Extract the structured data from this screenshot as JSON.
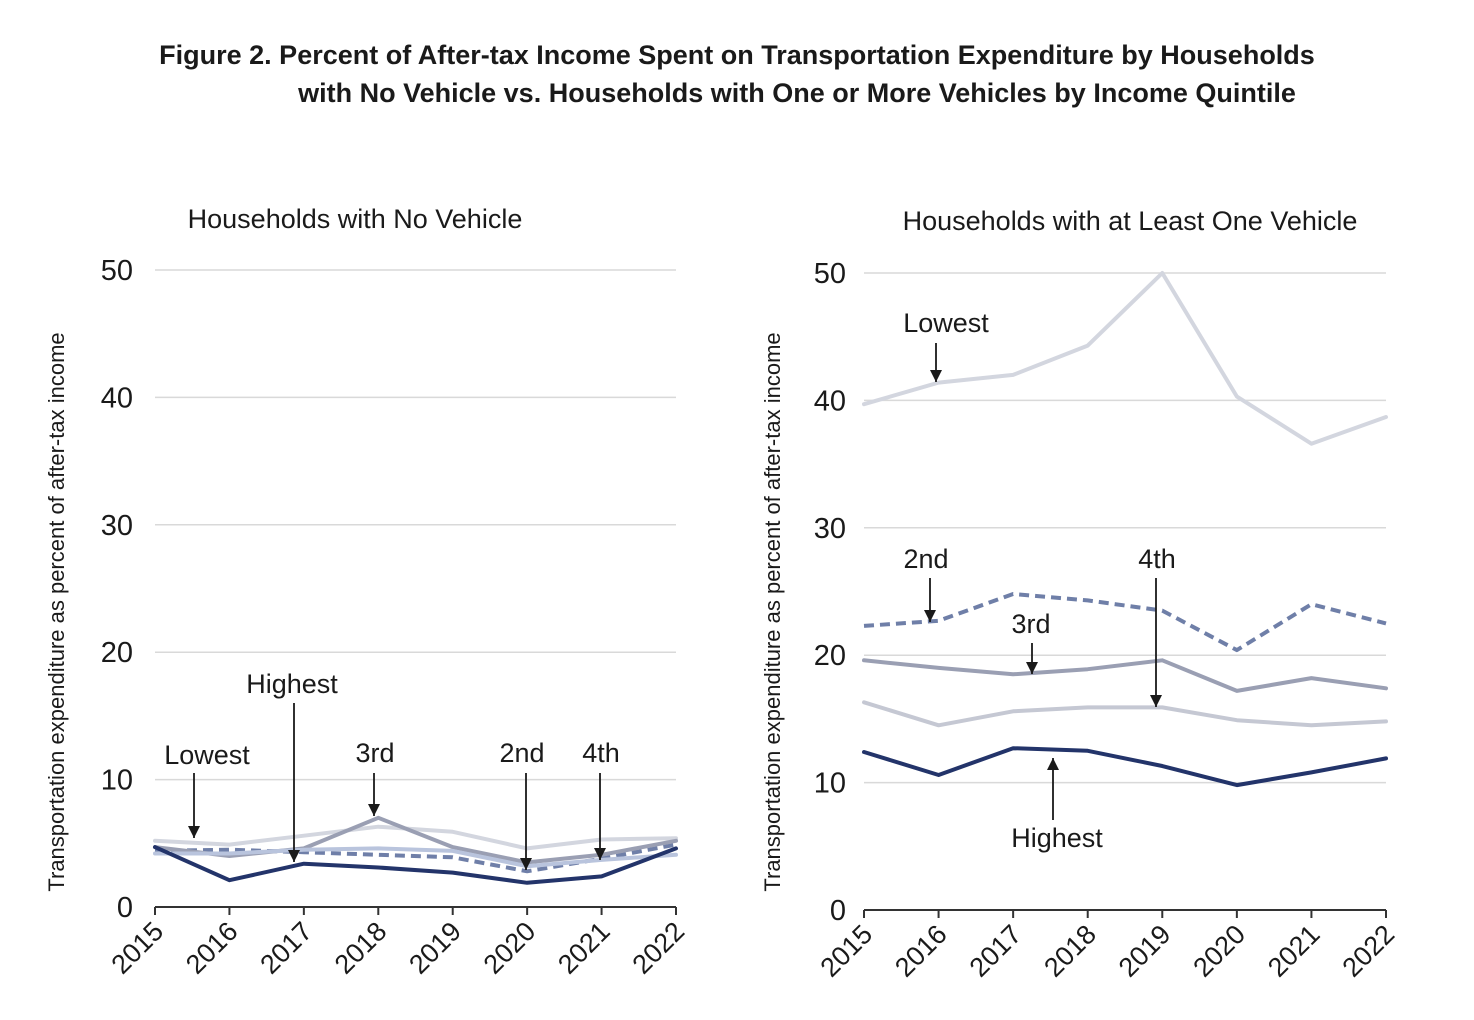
{
  "figure": {
    "title_line1": "Figure 2. Percent of After-tax Income Spent on Transportation Expenditure by Households",
    "title_line2": "with No Vehicle vs. Households with One or More Vehicles by Income Quintile"
  },
  "chart_data": [
    {
      "type": "line",
      "title": "Households with No Vehicle",
      "xlabel": "",
      "ylabel": "Transportation expenditure as  percent of after-tax income",
      "x": [
        "2015",
        "2016",
        "2017",
        "2018",
        "2019",
        "2020",
        "2021",
        "2022"
      ],
      "ylim": [
        0,
        50
      ],
      "yticks": [
        0,
        10,
        20,
        30,
        40,
        50
      ],
      "grid": true,
      "series": [
        {
          "name": "Lowest",
          "color": "#d3d6df",
          "dashed": false,
          "values": [
            5.2,
            4.9,
            5.6,
            6.3,
            5.9,
            4.6,
            5.3,
            5.4
          ]
        },
        {
          "name": "2nd",
          "color": "#6f7fa8",
          "dashed": true,
          "values": [
            4.4,
            4.5,
            4.3,
            4.1,
            3.9,
            2.8,
            3.8,
            4.9
          ]
        },
        {
          "name": "3rd",
          "color": "#9a9fb3",
          "dashed": false,
          "values": [
            4.7,
            4.0,
            4.6,
            7.0,
            4.7,
            3.5,
            4.1,
            5.2
          ]
        },
        {
          "name": "4th",
          "color": "#b9c4dd",
          "dashed": false,
          "values": [
            4.2,
            4.2,
            4.5,
            4.6,
            4.4,
            3.2,
            3.7,
            4.1
          ]
        },
        {
          "name": "Highest",
          "color": "#23346a",
          "dashed": false,
          "values": [
            4.7,
            2.1,
            3.4,
            3.1,
            2.7,
            1.9,
            2.4,
            4.6
          ]
        }
      ],
      "annotations": [
        "Lowest",
        "Highest",
        "3rd",
        "2nd",
        "4th"
      ]
    },
    {
      "type": "line",
      "title": "Households with at Least One Vehicle",
      "xlabel": "",
      "ylabel": "Transportation expenditure as  percent of after-tax income",
      "x": [
        "2015",
        "2016",
        "2017",
        "2018",
        "2019",
        "2020",
        "2021",
        "2022"
      ],
      "ylim": [
        0,
        50
      ],
      "yticks": [
        0,
        10,
        20,
        30,
        40,
        50
      ],
      "grid": true,
      "series": [
        {
          "name": "Lowest",
          "color": "#d3d6df",
          "dashed": false,
          "values": [
            39.7,
            41.4,
            42.0,
            44.3,
            50.0,
            40.3,
            36.6,
            38.7
          ]
        },
        {
          "name": "2nd",
          "color": "#6f7fa8",
          "dashed": true,
          "values": [
            22.3,
            22.7,
            24.8,
            24.3,
            23.5,
            20.4,
            24.0,
            22.5
          ]
        },
        {
          "name": "3rd",
          "color": "#9a9fb3",
          "dashed": false,
          "values": [
            19.6,
            19.0,
            18.5,
            18.9,
            19.6,
            17.2,
            18.2,
            17.4
          ]
        },
        {
          "name": "4th",
          "color": "#c5c8d3",
          "dashed": false,
          "values": [
            16.3,
            14.5,
            15.6,
            15.9,
            15.9,
            14.9,
            14.5,
            14.8
          ]
        },
        {
          "name": "Highest",
          "color": "#23346a",
          "dashed": false,
          "values": [
            12.4,
            10.6,
            12.7,
            12.5,
            11.3,
            9.8,
            10.8,
            11.9
          ]
        }
      ],
      "annotations": [
        "Lowest",
        "2nd",
        "3rd",
        "4th",
        "Highest"
      ]
    }
  ]
}
